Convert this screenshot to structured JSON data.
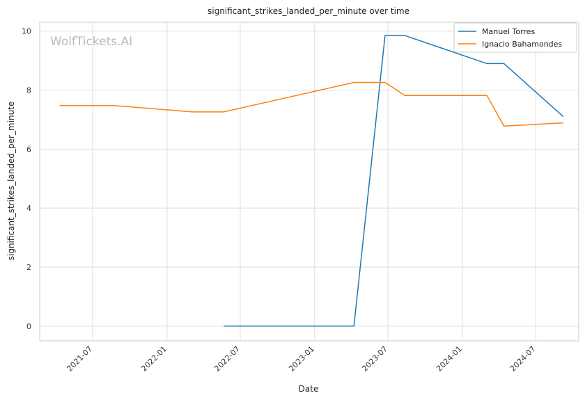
{
  "chart_data": {
    "type": "line",
    "title": "significant_strikes_landed_per_minute over time",
    "xlabel": "Date",
    "ylabel": "significant_strikes_landed_per_minute",
    "watermark": "WolfTickets.AI",
    "xlim": [
      "2021-02-20",
      "2024-10-15"
    ],
    "ylim": [
      -0.5,
      10.3
    ],
    "x_ticks": [
      "2021-07",
      "2022-01",
      "2022-07",
      "2023-01",
      "2023-07",
      "2024-01",
      "2024-07"
    ],
    "y_ticks": [
      0,
      2,
      4,
      6,
      8,
      10
    ],
    "grid": true,
    "legend_position": "top-right",
    "series": [
      {
        "name": "Manuel Torres",
        "color": "#1f77b4",
        "points": [
          {
            "x": "2022-05-21",
            "y": 0
          },
          {
            "x": "2023-04-08",
            "y": 0
          },
          {
            "x": "2023-06-24",
            "y": 9.85
          },
          {
            "x": "2023-08-12",
            "y": 9.85
          },
          {
            "x": "2024-03-02",
            "y": 8.9
          },
          {
            "x": "2024-04-13",
            "y": 8.9
          },
          {
            "x": "2024-09-07",
            "y": 7.1
          }
        ]
      },
      {
        "name": "Ignacio Bahamondes",
        "color": "#ff7f0e",
        "points": [
          {
            "x": "2021-04-10",
            "y": 7.48
          },
          {
            "x": "2021-08-21",
            "y": 7.48
          },
          {
            "x": "2022-03-05",
            "y": 7.26
          },
          {
            "x": "2022-05-21",
            "y": 7.26
          },
          {
            "x": "2023-04-08",
            "y": 8.26
          },
          {
            "x": "2023-06-24",
            "y": 8.26
          },
          {
            "x": "2023-08-12",
            "y": 7.82
          },
          {
            "x": "2024-03-02",
            "y": 7.82
          },
          {
            "x": "2024-04-13",
            "y": 6.78
          },
          {
            "x": "2024-09-07",
            "y": 6.89
          }
        ]
      }
    ]
  }
}
